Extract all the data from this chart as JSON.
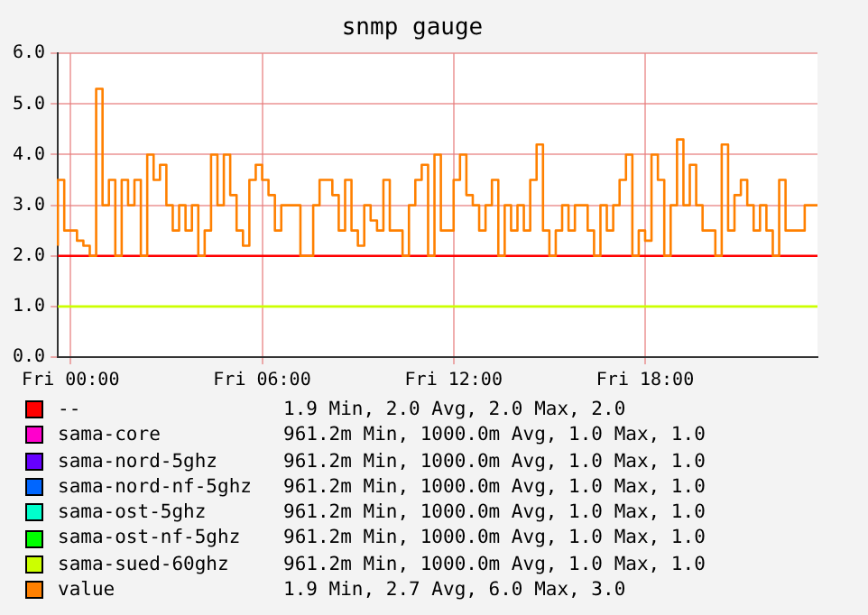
{
  "chart_data": {
    "type": "step",
    "title": "snmp gauge",
    "categories": [
      null,
      null,
      "Fri 00:00",
      null,
      null,
      null,
      null,
      null,
      null,
      null,
      null,
      null,
      null,
      null,
      null,
      null,
      null,
      null,
      null,
      null,
      null,
      null,
      null,
      null,
      null,
      null,
      null,
      null,
      null,
      null,
      null,
      null,
      "Fri 06:00",
      null,
      null,
      null,
      null,
      null,
      null,
      null,
      null,
      null,
      null,
      null,
      null,
      null,
      null,
      null,
      null,
      null,
      null,
      null,
      null,
      null,
      null,
      null,
      null,
      null,
      null,
      null,
      null,
      null,
      "Fri 12:00",
      null,
      null,
      null,
      null,
      null,
      null,
      null,
      null,
      null,
      null,
      null,
      null,
      null,
      null,
      null,
      null,
      null,
      null,
      null,
      null,
      null,
      null,
      null,
      null,
      null,
      null,
      null,
      null,
      null,
      "Fri 18:00",
      null,
      null,
      null,
      null,
      null,
      null,
      null,
      null,
      null,
      null,
      null,
      null,
      null,
      null,
      null,
      null,
      null,
      null,
      null,
      null,
      null,
      null,
      null,
      null,
      null,
      null,
      null
    ],
    "ylim": [
      0,
      6
    ],
    "yticks": [
      {
        "value": 0,
        "label": "0.0"
      },
      {
        "value": 1,
        "label": "1.0"
      },
      {
        "value": 2,
        "label": "2.0"
      },
      {
        "value": 3,
        "label": "3.0"
      },
      {
        "value": 4,
        "label": "4.0"
      },
      {
        "value": 5,
        "label": "5.0"
      },
      {
        "value": 6,
        "label": "6.0"
      }
    ],
    "grid": true,
    "legend": "bottom",
    "marker": "none",
    "line_style": "solid",
    "series": [
      {
        "name": "--",
        "color": "#ff0000",
        "values": [
          2,
          2,
          2,
          2,
          2,
          2,
          2,
          2,
          2,
          2,
          2,
          2,
          2,
          2,
          2,
          2,
          2,
          2,
          2,
          2,
          2,
          2,
          2,
          2,
          2,
          2,
          2,
          2,
          2,
          2,
          2,
          2,
          2,
          2,
          2,
          2,
          2,
          2,
          2,
          2,
          2,
          2,
          2,
          2,
          2,
          2,
          2,
          2,
          2,
          2,
          2,
          2,
          2,
          2,
          2,
          2,
          2,
          2,
          2,
          2,
          2,
          2,
          2,
          2,
          2,
          2,
          2,
          2,
          2,
          2,
          2,
          2,
          2,
          2,
          2,
          2,
          2,
          2,
          2,
          2,
          2,
          2,
          2,
          2,
          2,
          2,
          2,
          2,
          2,
          2,
          2,
          2,
          2,
          2,
          2,
          2,
          2,
          2,
          2,
          2,
          2,
          2,
          2,
          2,
          2,
          2,
          2,
          2,
          2,
          2,
          2,
          2,
          2,
          2,
          2,
          2,
          2,
          2,
          2,
          2
        ]
      },
      {
        "name": "sama-core",
        "color": "#ff00cc",
        "values": [
          null,
          null,
          null,
          null,
          null,
          null,
          null,
          null,
          null,
          null,
          null,
          null,
          null,
          null,
          null,
          null,
          null,
          null,
          null,
          null,
          null,
          null,
          null,
          null,
          null,
          null,
          null,
          null,
          null,
          null,
          null,
          null,
          null,
          null,
          null,
          null,
          null,
          null,
          null,
          null,
          null,
          null,
          null,
          null,
          null,
          null,
          null,
          null,
          null,
          null,
          null,
          null,
          null,
          null,
          null,
          null,
          null,
          null,
          null,
          null,
          null,
          null,
          null,
          null,
          null,
          null,
          null,
          null,
          null,
          null,
          null,
          null,
          null,
          null,
          null,
          null,
          null,
          null,
          null,
          null,
          null,
          null,
          null,
          null,
          null,
          null,
          null,
          null,
          null,
          null,
          null,
          null,
          null,
          null,
          null,
          null,
          null,
          null,
          null,
          null,
          null,
          null,
          null,
          null,
          null,
          null,
          null,
          null,
          null,
          null,
          null,
          null,
          null,
          null,
          null,
          null,
          null,
          null,
          null,
          null
        ]
      },
      {
        "name": "sama-nord-5ghz",
        "color": "#6600ff",
        "values": [
          null,
          null,
          null,
          null,
          null,
          null,
          null,
          null,
          null,
          null,
          null,
          null,
          null,
          null,
          null,
          null,
          null,
          null,
          null,
          null,
          null,
          null,
          null,
          null,
          null,
          null,
          null,
          null,
          null,
          null,
          null,
          null,
          null,
          null,
          null,
          null,
          null,
          null,
          null,
          null,
          null,
          null,
          null,
          null,
          null,
          null,
          null,
          null,
          null,
          null,
          null,
          null,
          null,
          null,
          null,
          null,
          null,
          null,
          null,
          null,
          null,
          null,
          null,
          null,
          null,
          null,
          null,
          null,
          null,
          null,
          null,
          null,
          null,
          null,
          null,
          null,
          null,
          null,
          null,
          null,
          null,
          null,
          null,
          null,
          null,
          null,
          null,
          null,
          null,
          null,
          null,
          null,
          null,
          null,
          null,
          null,
          null,
          null,
          null,
          null,
          null,
          null,
          null,
          null,
          null,
          null,
          null,
          null,
          null,
          null,
          null,
          null,
          null,
          null,
          null,
          null,
          null,
          null,
          null,
          null
        ]
      },
      {
        "name": "sama-nord-nf-5ghz",
        "color": "#0066ff",
        "values": [
          null,
          null,
          null,
          null,
          null,
          null,
          null,
          null,
          null,
          null,
          null,
          null,
          null,
          null,
          null,
          null,
          null,
          null,
          null,
          null,
          null,
          null,
          null,
          null,
          null,
          null,
          null,
          null,
          null,
          null,
          null,
          null,
          null,
          null,
          null,
          null,
          null,
          null,
          null,
          null,
          null,
          null,
          null,
          null,
          null,
          null,
          null,
          null,
          null,
          null,
          null,
          null,
          null,
          null,
          null,
          null,
          null,
          null,
          null,
          null,
          null,
          null,
          null,
          null,
          null,
          null,
          null,
          null,
          null,
          null,
          null,
          null,
          null,
          null,
          null,
          null,
          null,
          null,
          null,
          null,
          null,
          null,
          null,
          null,
          null,
          null,
          null,
          null,
          null,
          null,
          null,
          null,
          null,
          null,
          null,
          null,
          null,
          null,
          null,
          null,
          null,
          null,
          null,
          null,
          null,
          null,
          null,
          null,
          null,
          null,
          null,
          null,
          null,
          null,
          null,
          null,
          null,
          null,
          null,
          null
        ]
      },
      {
        "name": "sama-ost-5ghz",
        "color": "#00ffcc",
        "values": [
          null,
          null,
          null,
          null,
          null,
          null,
          null,
          null,
          null,
          null,
          null,
          null,
          null,
          null,
          null,
          null,
          null,
          null,
          null,
          null,
          null,
          null,
          null,
          null,
          null,
          null,
          null,
          null,
          null,
          null,
          null,
          null,
          null,
          null,
          null,
          null,
          null,
          null,
          null,
          null,
          null,
          null,
          null,
          null,
          null,
          null,
          null,
          null,
          null,
          null,
          null,
          null,
          null,
          null,
          null,
          null,
          null,
          null,
          null,
          null,
          null,
          null,
          null,
          null,
          null,
          null,
          null,
          null,
          null,
          null,
          null,
          null,
          null,
          null,
          null,
          null,
          null,
          null,
          null,
          null,
          null,
          null,
          null,
          null,
          null,
          null,
          null,
          null,
          null,
          null,
          null,
          null,
          null,
          null,
          null,
          null,
          null,
          null,
          null,
          null,
          null,
          null,
          null,
          null,
          null,
          null,
          null,
          null,
          null,
          null,
          null,
          null,
          null,
          null,
          null,
          null,
          null,
          null,
          null,
          null
        ]
      },
      {
        "name": "sama-ost-nf-5ghz",
        "color": "#00ff00",
        "values": [
          null,
          null,
          null,
          null,
          null,
          null,
          null,
          null,
          null,
          null,
          null,
          null,
          null,
          null,
          null,
          null,
          null,
          null,
          null,
          null,
          null,
          null,
          null,
          null,
          null,
          null,
          null,
          null,
          null,
          null,
          null,
          null,
          null,
          null,
          null,
          null,
          null,
          null,
          null,
          null,
          null,
          null,
          null,
          null,
          null,
          null,
          null,
          null,
          null,
          null,
          null,
          null,
          null,
          null,
          null,
          null,
          null,
          null,
          null,
          null,
          null,
          null,
          null,
          null,
          null,
          null,
          null,
          null,
          null,
          null,
          null,
          null,
          null,
          null,
          null,
          null,
          null,
          null,
          null,
          null,
          null,
          null,
          null,
          null,
          null,
          null,
          null,
          null,
          null,
          null,
          null,
          null,
          null,
          null,
          null,
          null,
          null,
          null,
          null,
          null,
          null,
          null,
          null,
          null,
          null,
          null,
          null,
          null,
          null,
          null,
          null,
          null,
          null,
          null,
          null,
          null,
          null,
          null,
          null,
          null
        ]
      },
      {
        "name": "sama-sued-60ghz",
        "color": "#ccff00",
        "values": [
          1,
          1,
          1,
          1,
          1,
          1,
          1,
          1,
          1,
          1,
          1,
          1,
          1,
          1,
          1,
          1,
          1,
          1,
          1,
          1,
          1,
          1,
          1,
          1,
          1,
          1,
          1,
          1,
          1,
          1,
          1,
          1,
          1,
          1,
          1,
          1,
          1,
          1,
          1,
          1,
          1,
          1,
          1,
          1,
          1,
          1,
          1,
          1,
          1,
          1,
          1,
          1,
          1,
          1,
          1,
          1,
          1,
          1,
          1,
          1,
          1,
          1,
          1,
          1,
          1,
          1,
          1,
          1,
          1,
          1,
          1,
          1,
          1,
          1,
          1,
          1,
          1,
          1,
          1,
          1,
          1,
          1,
          1,
          1,
          1,
          1,
          1,
          1,
          1,
          1,
          1,
          1,
          1,
          1,
          1,
          1,
          1,
          1,
          1,
          1,
          1,
          1,
          1,
          1,
          1,
          1,
          1,
          1,
          1,
          1,
          1,
          1,
          1,
          1,
          1,
          1,
          1,
          1,
          1,
          1
        ]
      },
      {
        "name": "value",
        "color": "#ff8000",
        "values": [
          2.2,
          3.5,
          2.5,
          2.5,
          2.3,
          2.2,
          2.0,
          5.3,
          3.0,
          3.5,
          2.0,
          3.5,
          3.0,
          3.5,
          2.0,
          4.0,
          3.5,
          3.8,
          3.0,
          2.5,
          3.0,
          2.5,
          3.0,
          2.0,
          2.5,
          4.0,
          3.0,
          4.0,
          3.2,
          2.5,
          2.2,
          3.5,
          3.8,
          3.5,
          3.2,
          2.5,
          3.0,
          3.0,
          3.0,
          2.0,
          2.0,
          3.0,
          3.5,
          3.5,
          3.2,
          2.5,
          3.5,
          2.5,
          2.2,
          3.0,
          2.7,
          2.5,
          3.5,
          2.5,
          2.5,
          2.0,
          3.0,
          3.5,
          3.8,
          2.0,
          4.0,
          2.5,
          2.5,
          3.5,
          4.0,
          3.2,
          3.0,
          2.5,
          3.0,
          3.5,
          2.0,
          3.0,
          2.5,
          3.0,
          2.5,
          3.5,
          4.2,
          2.5,
          2.0,
          2.5,
          3.0,
          2.5,
          3.0,
          3.0,
          2.5,
          2.0,
          3.0,
          2.5,
          3.0,
          3.5,
          4.0,
          2.0,
          2.5,
          2.3,
          4.0,
          3.5,
          2.0,
          3.0,
          4.3,
          3.0,
          3.8,
          3.0,
          2.5,
          2.5,
          2.0,
          4.2,
          2.5,
          3.2,
          3.5,
          3.0,
          2.5,
          3.0,
          2.5,
          2.0,
          3.5,
          2.5,
          2.5,
          2.5,
          3.0,
          3.0
        ]
      }
    ],
    "annotations": [
      "1.9 Min, 2.0 Avg, 2.0 Max, 2.0",
      "961.2m Min, 1000.0m Avg, 1.0 Max, 1.0",
      "961.2m Min, 1000.0m Avg, 1.0 Max, 1.0",
      "961.2m Min, 1000.0m Avg, 1.0 Max, 1.0",
      "961.2m Min, 1000.0m Avg, 1.0 Max, 1.0",
      "961.2m Min, 1000.0m Avg, 1.0 Max, 1.0",
      "961.2m Min, 1000.0m Avg, 1.0 Max, 1.0",
      "1.9 Min, 2.7 Avg, 6.0 Max, 3.0"
    ]
  }
}
